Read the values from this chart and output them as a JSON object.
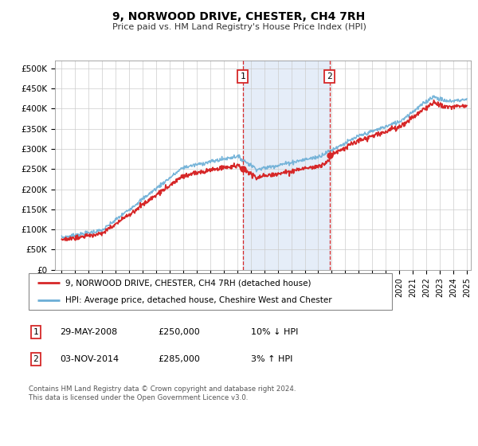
{
  "title": "9, NORWOOD DRIVE, CHESTER, CH4 7RH",
  "subtitle": "Price paid vs. HM Land Registry's House Price Index (HPI)",
  "legend_line1": "9, NORWOOD DRIVE, CHESTER, CH4 7RH (detached house)",
  "legend_line2": "HPI: Average price, detached house, Cheshire West and Chester",
  "transaction1_date": "29-MAY-2008",
  "transaction1_price": "£250,000",
  "transaction1_hpi": "10% ↓ HPI",
  "transaction2_date": "03-NOV-2014",
  "transaction2_price": "£285,000",
  "transaction2_hpi": "3% ↑ HPI",
  "footer": "Contains HM Land Registry data © Crown copyright and database right 2024.\nThis data is licensed under the Open Government Licence v3.0.",
  "sale1_x": 2008.41,
  "sale1_price": 250000,
  "sale2_x": 2014.84,
  "sale2_price": 285000,
  "hpi_color": "#6baed6",
  "price_color": "#d62728",
  "shaded_color": "#c6d9f1",
  "dashed_color": "#d62728",
  "ylim_max": 500000,
  "xlim_start": 1994.5,
  "xlim_end": 2025.3,
  "grid_color": "#cccccc",
  "background_color": "#ffffff"
}
